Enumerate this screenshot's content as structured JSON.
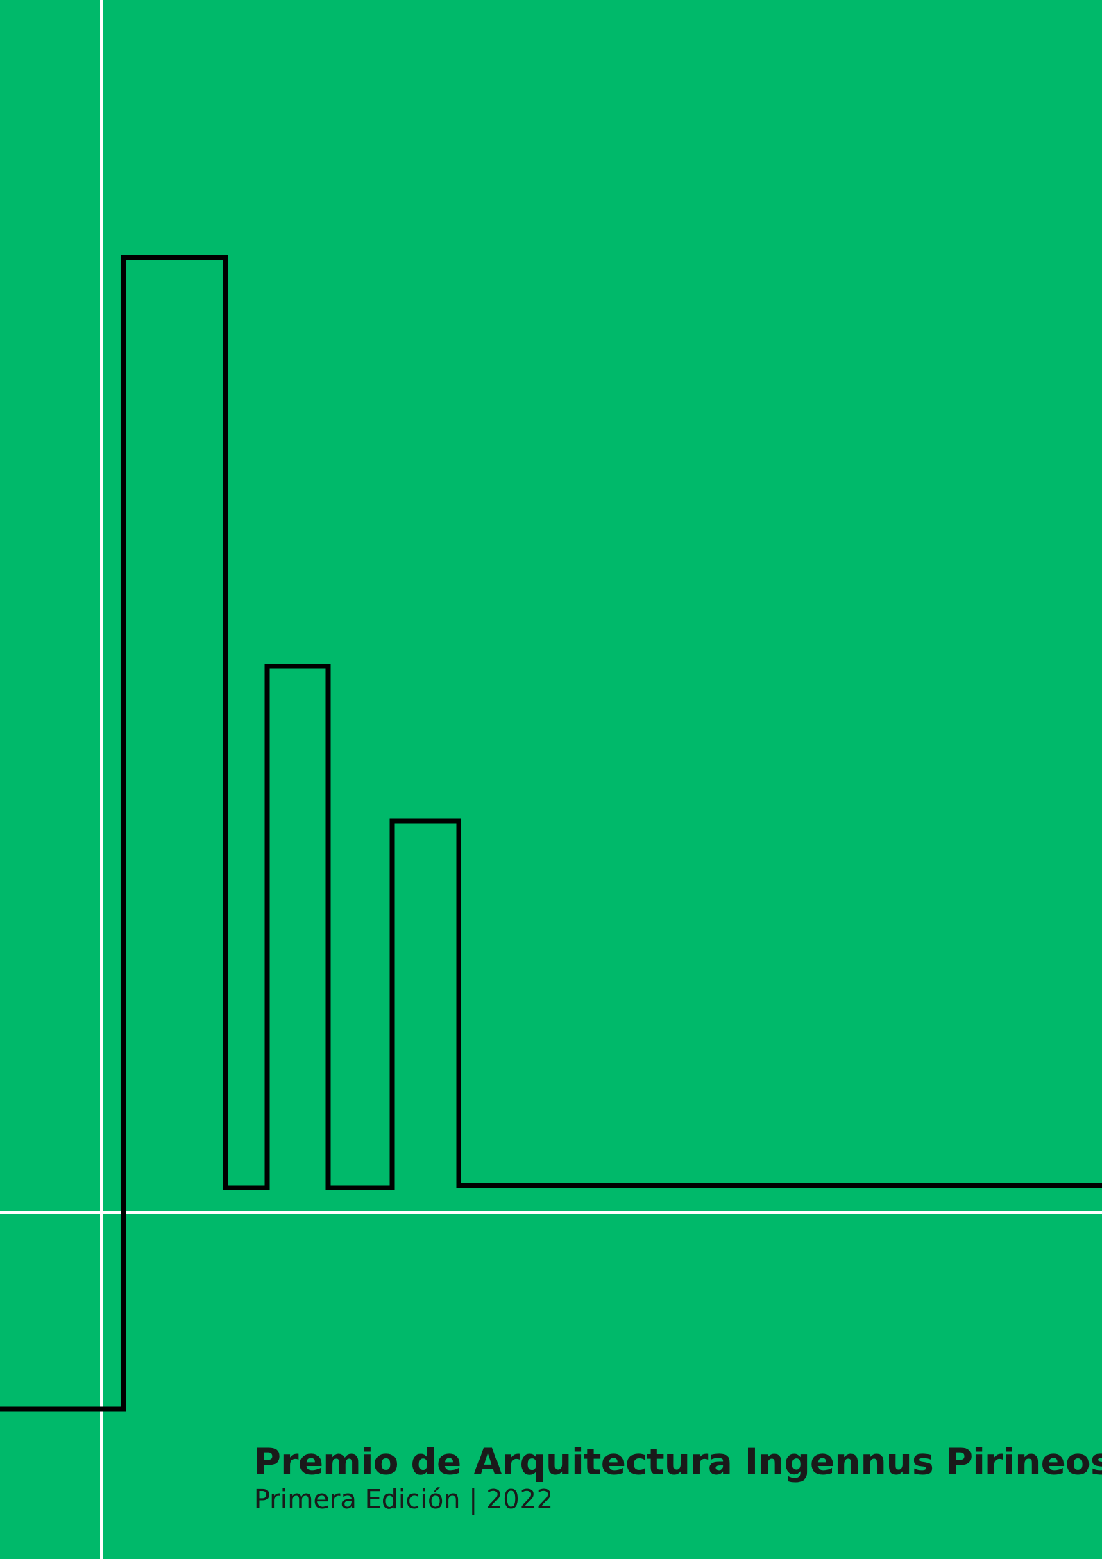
{
  "cover": {
    "title": "Premio de Arquitectura Ingennus Pirineos",
    "subtitle": "Primera Edición | 2022"
  },
  "colors": {
    "background": "#00b96a",
    "guides": "#ffffff",
    "outline": "#000000",
    "text": "#1a1a1a"
  }
}
